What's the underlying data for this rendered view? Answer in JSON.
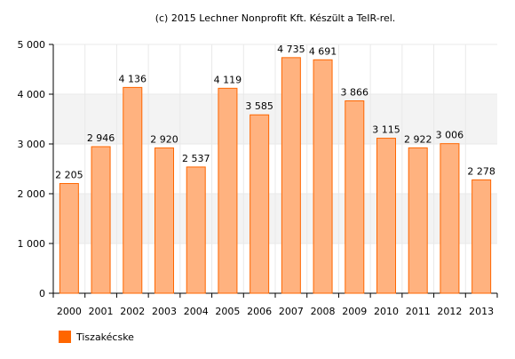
{
  "credit": "(c) 2015 Lechner Nonprofit Kft. Készült a TeIR-rel.",
  "legend": {
    "label": "Tiszakécske"
  },
  "colors": {
    "bar_fill": "#ffb27f",
    "bar_stroke": "#ff6600",
    "legend_fill": "#ff6600",
    "grid_band": "#f3f3f3",
    "axis": "#000000",
    "gridline": "#e9e9e9"
  },
  "chart_data": {
    "type": "bar",
    "title": "",
    "xlabel": "",
    "ylabel": "",
    "categories": [
      "2000",
      "2001",
      "2002",
      "2003",
      "2004",
      "2005",
      "2006",
      "2007",
      "2008",
      "2009",
      "2010",
      "2011",
      "2012",
      "2013"
    ],
    "series": [
      {
        "name": "Tiszakécske",
        "values": [
          2205,
          2946,
          4136,
          2920,
          2537,
          4119,
          3585,
          4735,
          4691,
          3866,
          3115,
          2922,
          3006,
          2278
        ],
        "labels": [
          "2 205",
          "2 946",
          "4 136",
          "2 920",
          "2 537",
          "4 119",
          "3 585",
          "4 735",
          "4 691",
          "3 866",
          "3 115",
          "2 922",
          "3 006",
          "2 278"
        ]
      }
    ],
    "ylim": [
      0,
      5000
    ],
    "yticks": [
      0,
      1000,
      2000,
      3000,
      4000,
      5000
    ],
    "ytick_labels": [
      "0",
      "1 000",
      "2 000",
      "3 000",
      "4 000",
      "5 000"
    ],
    "grid": true,
    "legend_position": "bottom-left"
  }
}
